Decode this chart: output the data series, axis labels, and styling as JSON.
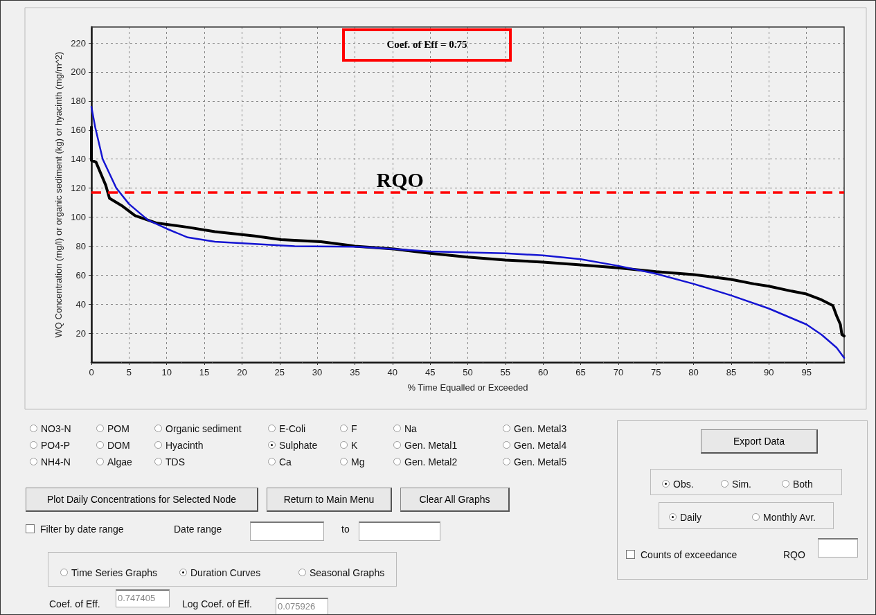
{
  "chart_data": {
    "type": "line",
    "xlabel": "% Time Equalled or Exceeded",
    "ylabel": "WQ Concentration (mg/l) or organic sediment (kg) or hyacinth (mg/m^2)",
    "xlim": [
      0,
      100
    ],
    "xticks": [
      0,
      5,
      10,
      15,
      20,
      25,
      30,
      35,
      40,
      45,
      50,
      55,
      60,
      65,
      70,
      75,
      80,
      85,
      90,
      95
    ],
    "ylim": [
      0,
      231
    ],
    "yticks": [
      20,
      40,
      60,
      80,
      100,
      120,
      140,
      160,
      180,
      200,
      220
    ],
    "grid": true,
    "marker": "none",
    "line_style": "solid",
    "series": [
      {
        "color": "#000000",
        "x": [
          0,
          0,
          0.6,
          1.9,
          2.4,
          4,
          5.8,
          8.6,
          10,
          12.8,
          16.4,
          21.7,
          25.2,
          30.5,
          35,
          40.2,
          45,
          50,
          55,
          60,
          65,
          70,
          75,
          80,
          85,
          88,
          90,
          93,
          95,
          97,
          98.5,
          99,
          99.5,
          99.7,
          100
        ],
        "values": [
          162,
          139,
          138,
          122,
          113,
          108,
          101,
          96,
          95,
          93,
          90,
          87,
          84.5,
          83,
          80,
          78,
          75,
          72.4,
          70.4,
          69,
          67,
          65,
          62.4,
          60.4,
          57,
          54,
          52.4,
          49,
          47,
          43,
          39,
          32,
          26,
          19,
          18
        ]
      },
      {
        "color": "#1414d2",
        "x": [
          0,
          0.5,
          1.5,
          3.3,
          5,
          7.5,
          10,
          12.8,
          16.4,
          21.7,
          27,
          35.8,
          40,
          45,
          50,
          55,
          60,
          65,
          70,
          75,
          80,
          85,
          90,
          95,
          97,
          99,
          100
        ],
        "values": [
          176,
          162,
          140,
          120,
          109,
          98,
          92,
          86,
          83,
          81.5,
          80,
          79.5,
          78,
          76.4,
          75.6,
          75,
          73.6,
          71,
          66.4,
          61,
          54,
          46,
          37,
          26,
          19,
          10,
          3
        ]
      }
    ],
    "ref_lines": [
      {
        "axis": "y",
        "value": 117,
        "label": "RQO",
        "color": "#ff0000",
        "line_style": "dashed"
      }
    ],
    "annotations": [
      "Coef. of Eff = 0.75",
      "NO3-N",
      "PO4-P",
      "NH4-N",
      "POM",
      "DOM",
      "Algae",
      "Organic sediment",
      "Hyacinth",
      "TDS",
      "E-Coli",
      "Sulphate",
      "Ca",
      "F",
      "K",
      "Mg",
      "Na",
      "Gen. Metal1",
      "Gen. Metal2",
      "Gen. Metal3",
      "Gen. Metal4",
      "Gen. Metal5",
      "Plot Daily Concentrations for Selected Node",
      "Return to Main Menu",
      "Clear All Graphs",
      "Filter by date range",
      "Date range",
      "to",
      "Time Series Graphs",
      "Duration Curves",
      "Seasonal Graphs",
      "Coef. of Eff.",
      "0.747405",
      "Log Coef. of Eff.",
      "0.075926",
      "Export Data",
      "Obs.",
      "Sim.",
      "Both",
      "Daily",
      "Monthly Avr.",
      "Counts of exceedance",
      "RQO"
    ]
  }
}
